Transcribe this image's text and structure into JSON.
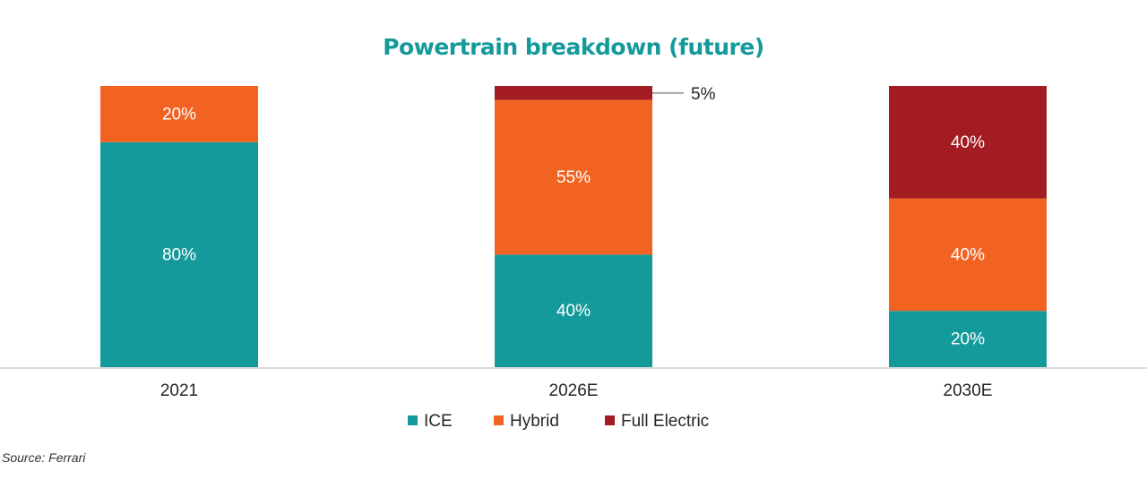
{
  "chart_data": {
    "type": "bar",
    "stacked": true,
    "percent": true,
    "title": "Powertrain breakdown (future)",
    "xlabel": "",
    "ylabel": "",
    "ylim": [
      0,
      100
    ],
    "categories": [
      "2021",
      "2026E",
      "2030E"
    ],
    "series": [
      {
        "name": "ICE",
        "color": "#159a9c",
        "values": [
          80,
          40,
          20
        ],
        "labels": [
          "80%",
          "40%",
          "20%"
        ]
      },
      {
        "name": "Hybrid",
        "color": "#f26322",
        "values": [
          20,
          55,
          40
        ],
        "labels": [
          "20%",
          "55%",
          "40%"
        ]
      },
      {
        "name": "Full Electric",
        "color": "#a21c21",
        "values": [
          0,
          5,
          40
        ],
        "labels": [
          "",
          "5%",
          "40%"
        ]
      }
    ],
    "grid": false,
    "legend": "bottom-center"
  },
  "title_color": "#159a9c",
  "source": "Source: Ferrari"
}
